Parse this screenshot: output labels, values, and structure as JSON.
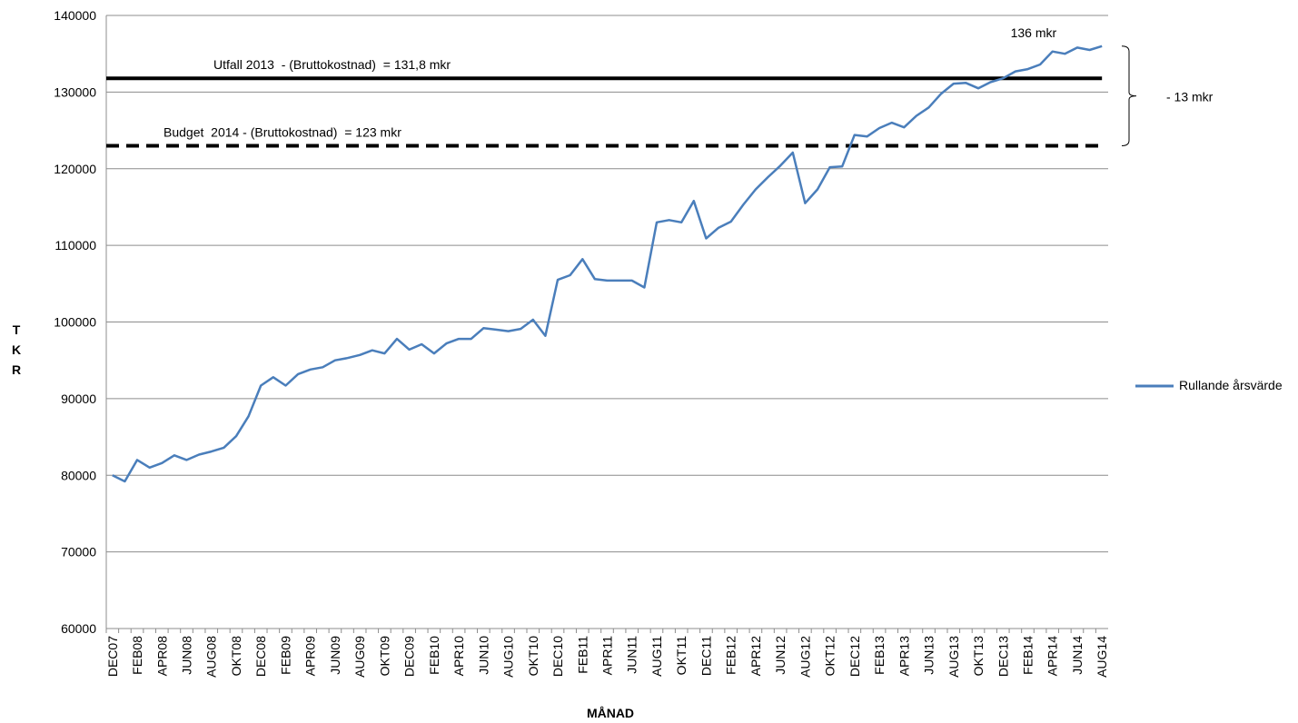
{
  "chart_data": {
    "type": "line",
    "x_label": "MÅNAD",
    "y_label": "TKR",
    "categories": [
      "DEC07",
      null,
      "FEB08",
      null,
      "APR08",
      null,
      "JUN08",
      null,
      "AUG08",
      null,
      "OKT08",
      null,
      "DEC08",
      null,
      "FEB09",
      null,
      "APR09",
      null,
      "JUN09",
      null,
      "AUG09",
      null,
      "OKT09",
      null,
      "DEC09",
      null,
      "FEB10",
      null,
      "APR10",
      null,
      "JUN10",
      null,
      "AUG10",
      null,
      "OKT10",
      null,
      "DEC10",
      null,
      "FEB11",
      null,
      "APR11",
      null,
      "JUN11",
      null,
      "AUG11",
      null,
      "OKT11",
      null,
      "DEC11",
      null,
      "FEB12",
      null,
      "APR12",
      null,
      "JUN12",
      null,
      "AUG12",
      null,
      "OKT12",
      null,
      "DEC12",
      null,
      "FEB13",
      null,
      "APR13",
      null,
      "JUN13",
      null,
      "AUG13",
      null,
      "OKT13",
      null,
      "DEC13",
      null,
      "FEB14",
      null,
      "APR14",
      null,
      "JUN14",
      null,
      "AUG14"
    ],
    "series": [
      {
        "name": "Rullande årsvärde",
        "color": "#4a7ebb",
        "values": [
          80000,
          79200,
          82000,
          81000,
          81600,
          82600,
          82000,
          82700,
          83100,
          83600,
          85100,
          87700,
          91700,
          92800,
          91700,
          93200,
          93800,
          94100,
          95000,
          95300,
          95700,
          96300,
          95900,
          97800,
          96400,
          97100,
          95900,
          97200,
          97800,
          97800,
          99200,
          99000,
          98800,
          99100,
          100300,
          98200,
          105500,
          106100,
          108200,
          105600,
          105400,
          105400,
          105400,
          104500,
          113000,
          113300,
          113000,
          115800,
          110900,
          112300,
          113100,
          115300,
          117300,
          118900,
          120400,
          122100,
          115500,
          117300,
          120200,
          120300,
          124400,
          124200,
          125300,
          126000,
          125400,
          126900,
          128000,
          129800,
          131100,
          131200,
          130500,
          131300,
          131800,
          132700,
          133000,
          133600,
          135300,
          135000,
          135800,
          135500,
          136000
        ]
      }
    ],
    "ylim": [
      60000,
      140000
    ],
    "yticks": [
      60000,
      70000,
      80000,
      90000,
      100000,
      110000,
      120000,
      130000,
      140000
    ],
    "grid": true,
    "legend": "right",
    "reference_lines": [
      {
        "label": "Utfall 2013  - (Bruttokostnad)  = 131,8 mkr",
        "value": 131800,
        "style": "solid"
      },
      {
        "label": "Budget  2014 - (Bruttokostnad)  = 123 mkr",
        "value": 123000,
        "style": "dashed"
      }
    ],
    "annotations": [
      {
        "text": "136 mkr",
        "value": 136000
      },
      {
        "text": "- 13 mkr",
        "from": 123000,
        "to": 136000
      }
    ]
  }
}
